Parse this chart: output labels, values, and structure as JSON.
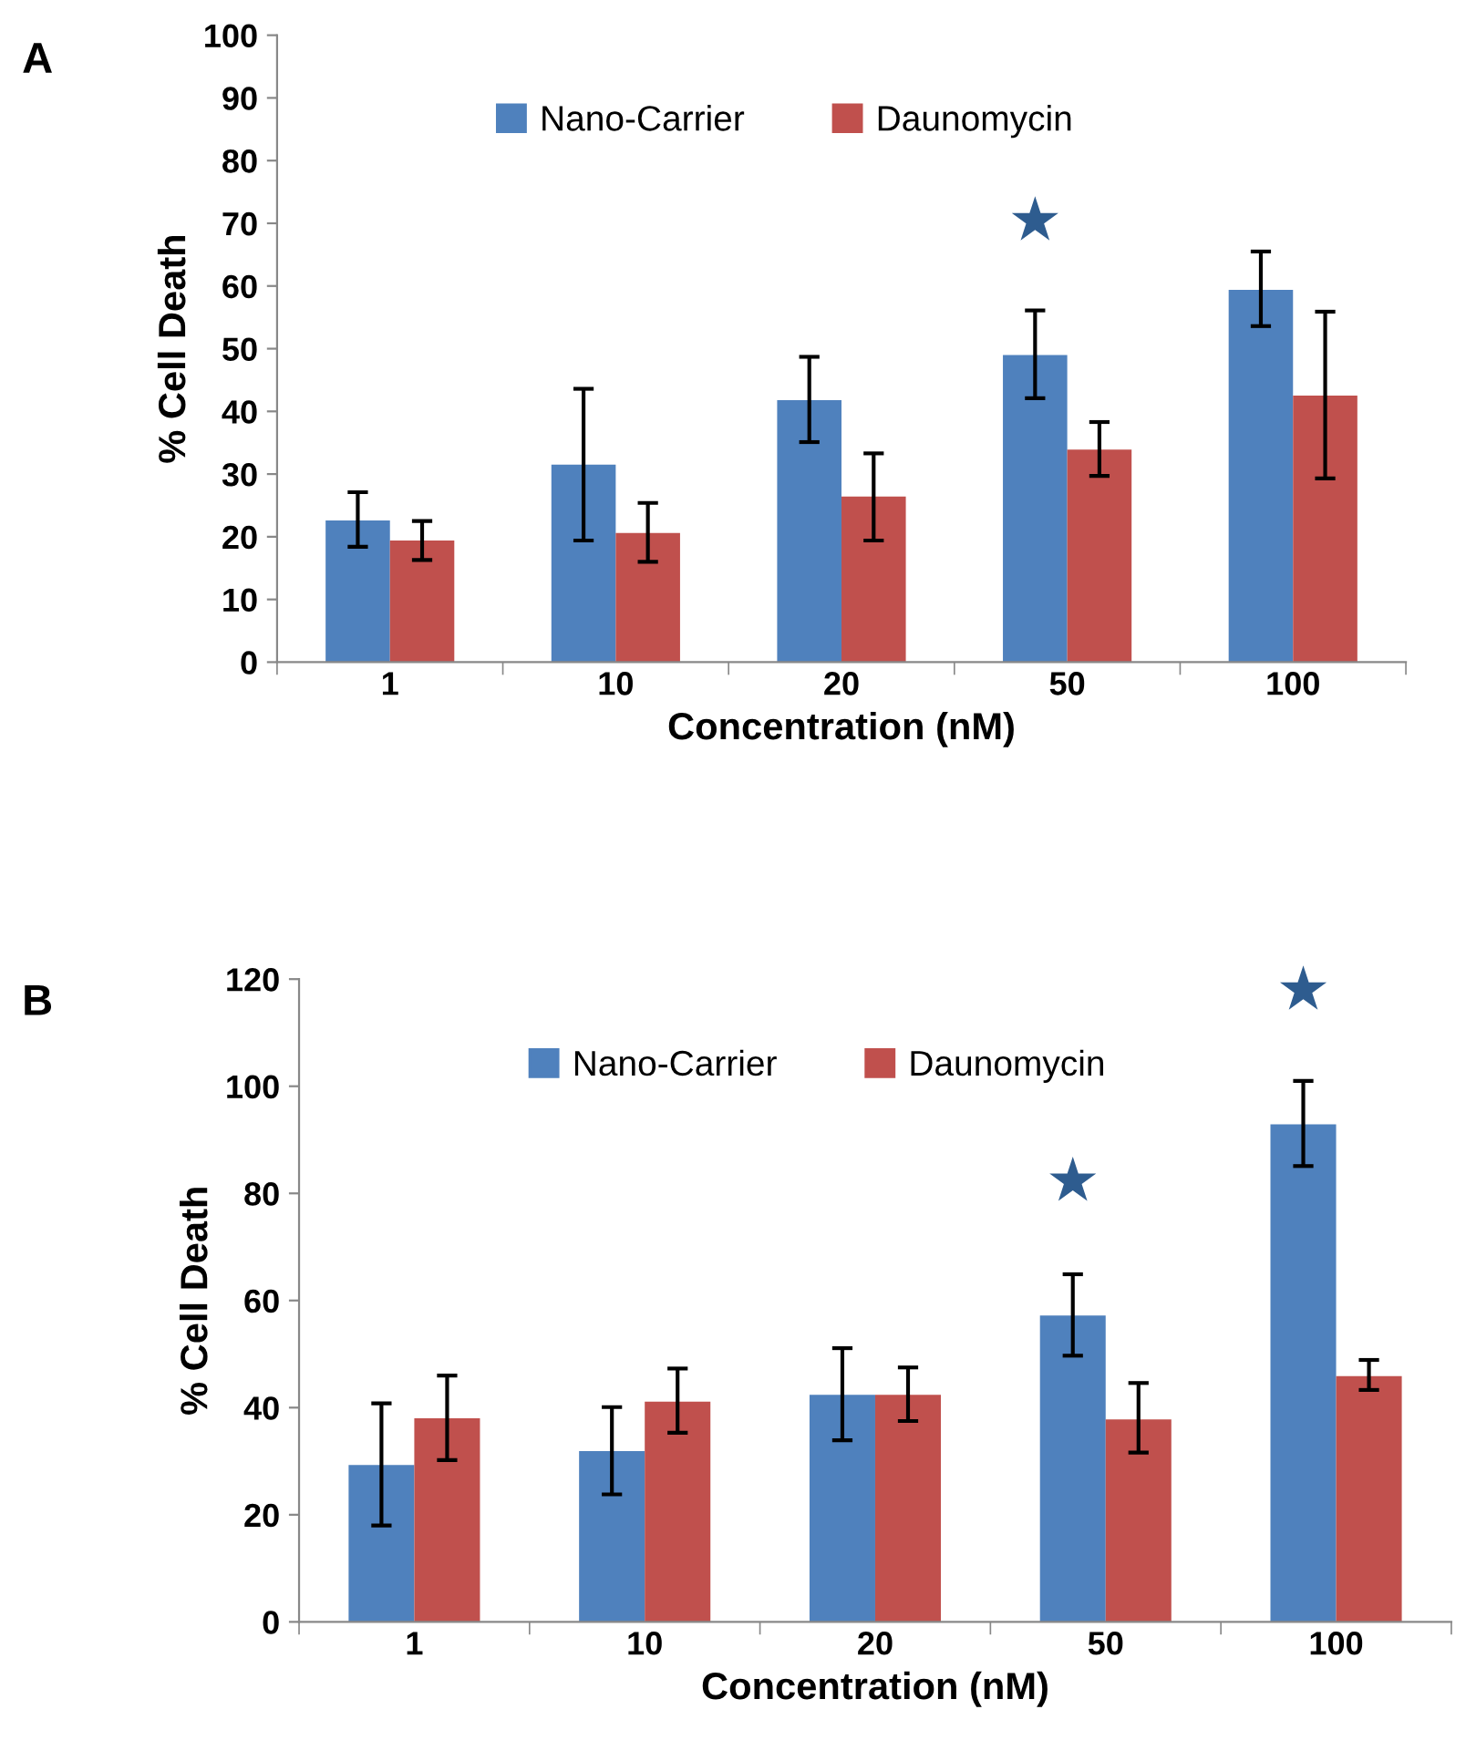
{
  "chart_data": [
    {
      "type": "bar",
      "xlabel": "Concentration (nM)",
      "ylabel": "% Cell Death",
      "categories": [
        "1",
        "10",
        "20",
        "50",
        "100"
      ],
      "series": [
        {
          "name": "Nano-Carrier",
          "color": "#4f81bd",
          "values": [
            22.6,
            31.5,
            41.8,
            49.0,
            59.4
          ],
          "errors": [
            [
              18.4,
              27.1
            ],
            [
              19.4,
              43.6
            ],
            [
              35.1,
              48.7
            ],
            [
              42.1,
              56.1
            ],
            [
              53.6,
              65.5
            ]
          ]
        },
        {
          "name": "Daunomycin",
          "color": "#c0504d",
          "values": [
            19.4,
            20.6,
            26.4,
            33.9,
            42.5
          ],
          "errors": [
            [
              16.3,
              22.5
            ],
            [
              16.0,
              25.4
            ],
            [
              19.4,
              33.3
            ],
            [
              29.7,
              38.3
            ],
            [
              29.3,
              55.9
            ]
          ]
        }
      ],
      "ylim": [
        0,
        100
      ],
      "yticks": [
        0,
        10,
        20,
        30,
        40,
        50,
        60,
        70,
        80,
        90,
        100
      ],
      "grid": false,
      "legend": "top",
      "annotations": [
        "A",
        {
          "text": "★",
          "x": "50",
          "y": 49.0
        }
      ]
    },
    {
      "type": "bar",
      "xlabel": "Concentration (nM)",
      "ylabel": "% Cell Death",
      "categories": [
        "1",
        "10",
        "20",
        "50",
        "100"
      ],
      "series": [
        {
          "name": "Nano-Carrier",
          "color": "#4f81bd",
          "values": [
            29.3,
            31.9,
            42.4,
            57.2,
            92.9
          ],
          "errors": [
            [
              18.0,
              40.8
            ],
            [
              23.8,
              40.1
            ],
            [
              33.9,
              51.1
            ],
            [
              49.7,
              64.9
            ],
            [
              85.1,
              101.0
            ]
          ]
        },
        {
          "name": "Daunomycin",
          "color": "#c0504d",
          "values": [
            38.0,
            41.1,
            42.4,
            37.8,
            45.9
          ],
          "errors": [
            [
              30.2,
              46.0
            ],
            [
              35.3,
              47.3
            ],
            [
              37.5,
              47.5
            ],
            [
              31.6,
              44.6
            ],
            [
              43.3,
              48.9
            ]
          ]
        }
      ],
      "ylim": [
        0,
        120
      ],
      "yticks": [
        0,
        20,
        40,
        60,
        80,
        100,
        120
      ],
      "grid": false,
      "legend": "top",
      "annotations": [
        "B",
        {
          "text": "★",
          "x": "50",
          "y": 57.2
        },
        {
          "text": "★",
          "x": "100",
          "y": 92.9
        }
      ]
    }
  ]
}
